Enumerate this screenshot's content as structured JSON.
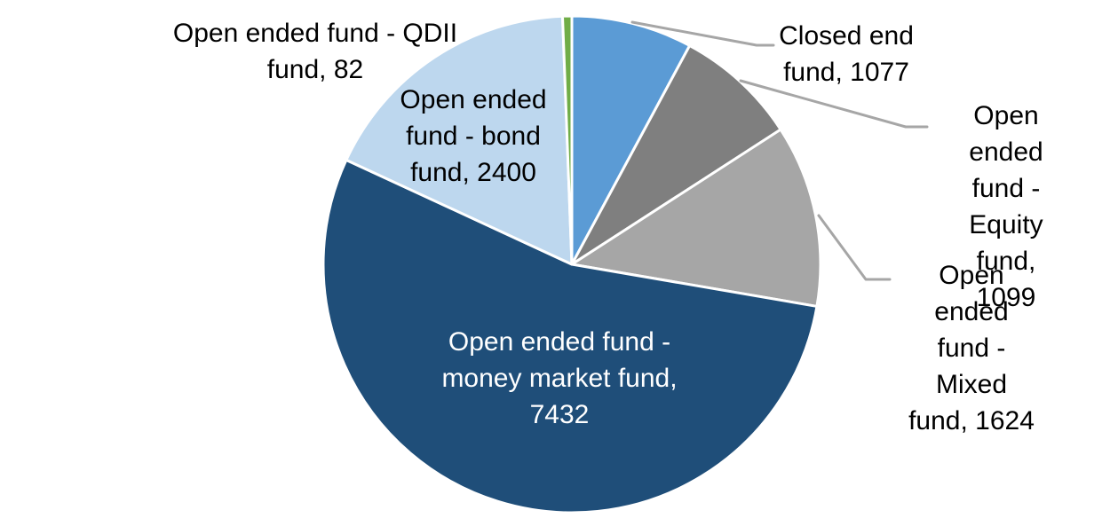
{
  "page": {
    "background_color": "#FFFFFF"
  },
  "chart_data": {
    "type": "pie",
    "title": "",
    "total": 13714,
    "direction": "clockwise",
    "start_angle_deg": 0,
    "legend_position": "none",
    "gridlines": "off",
    "slice_border_color": "#FFFFFF",
    "leader_line_color": "#A6A6A6",
    "slices": [
      {
        "id": "closed_end",
        "label": "Closed end fund",
        "value": 1077,
        "color": "#5B9BD5",
        "data_label": "Closed end\nfund, 1077",
        "label_color": "#000000",
        "label_position": "outside",
        "leader_line": true
      },
      {
        "id": "equity",
        "label": "Open ended fund - Equity fund",
        "value": 1099,
        "color": "#7F7F7F",
        "data_label": "Open ended\nfund - Equity\nfund, 1099",
        "label_color": "#000000",
        "label_position": "outside",
        "leader_line": true
      },
      {
        "id": "mixed",
        "label": "Open ended fund - Mixed fund",
        "value": 1624,
        "color": "#A6A6A6",
        "data_label": "Open ended\nfund - Mixed\nfund, 1624",
        "label_color": "#000000",
        "label_position": "outside",
        "leader_line": true
      },
      {
        "id": "money_market",
        "label": "Open ended fund - money market fund",
        "value": 7432,
        "color": "#1F4E79",
        "data_label": "Open ended fund -\nmoney market fund,\n7432",
        "label_color": "#FFFFFF",
        "label_position": "inside",
        "leader_line": false
      },
      {
        "id": "bond",
        "label": "Open ended fund - bond fund",
        "value": 2400,
        "color": "#BDD7EE",
        "data_label": "Open ended\nfund - bond\nfund, 2400",
        "label_color": "#000000",
        "label_position": "inside",
        "leader_line": false
      },
      {
        "id": "qdii",
        "label": "Open ended fund - QDII fund",
        "value": 82,
        "color": "#70AD47",
        "data_label": "Open ended fund - QDII\nfund, 82",
        "label_color": "#000000",
        "label_position": "outside",
        "leader_line": false
      }
    ]
  }
}
